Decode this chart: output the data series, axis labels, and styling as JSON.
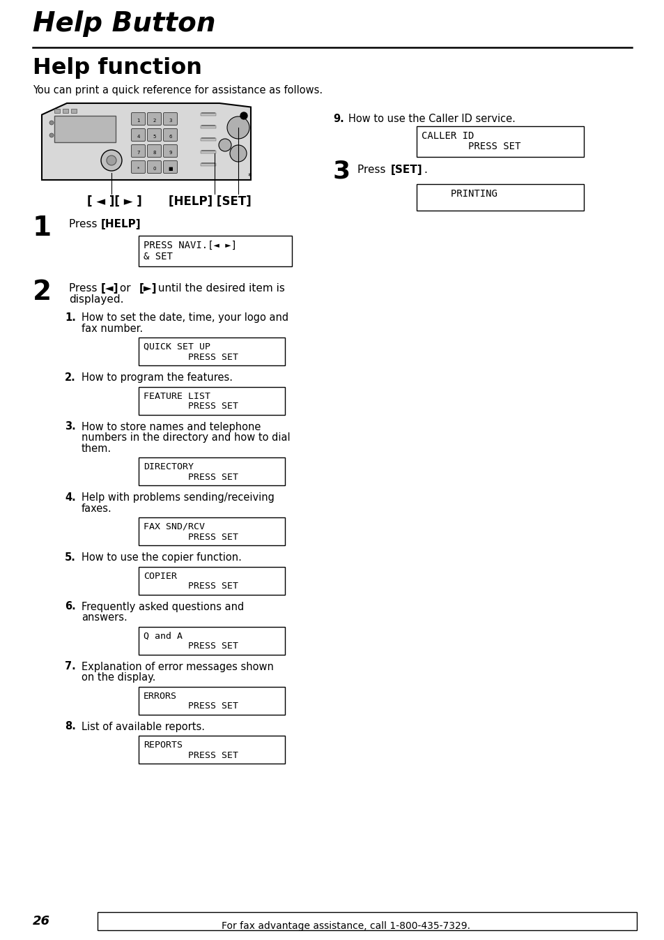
{
  "title": "Help Button",
  "subtitle": "Help function",
  "intro": "You can print a quick reference for assistance as follows.",
  "step1_box_line1": "PRESS NAVI.[◄ ►]",
  "step1_box_line2": "& SET",
  "step9_text": "How to use the Caller ID service.",
  "step9_box_line1": "CALLER ID",
  "step9_box_line2": "        PRESS SET",
  "step3_box_line1": "PRINTING",
  "items": [
    {
      "num": "1.",
      "lines": [
        "How to set the date, time, your logo and",
        "fax number."
      ],
      "box1": "QUICK SET UP",
      "box2": "        PRESS SET"
    },
    {
      "num": "2.",
      "lines": [
        "How to program the features."
      ],
      "box1": "FEATURE LIST",
      "box2": "        PRESS SET"
    },
    {
      "num": "3.",
      "lines": [
        "How to store names and telephone",
        "numbers in the directory and how to dial",
        "them."
      ],
      "box1": "DIRECTORY",
      "box2": "        PRESS SET"
    },
    {
      "num": "4.",
      "lines": [
        "Help with problems sending/receiving",
        "faxes."
      ],
      "box1": "FAX SND/RCV",
      "box2": "        PRESS SET"
    },
    {
      "num": "5.",
      "lines": [
        "How to use the copier function."
      ],
      "box1": "COPIER",
      "box2": "        PRESS SET"
    },
    {
      "num": "6.",
      "lines": [
        "Frequently asked questions and",
        "answers."
      ],
      "box1": "Q and A",
      "box2": "        PRESS SET"
    },
    {
      "num": "7.",
      "lines": [
        "Explanation of error messages shown",
        "on the display."
      ],
      "box1": "ERRORS",
      "box2": "        PRESS SET"
    },
    {
      "num": "8.",
      "lines": [
        "List of available reports."
      ],
      "box1": "REPORTS",
      "box2": "        PRESS SET"
    }
  ],
  "page_num": "26",
  "footer": "For fax advantage assistance, call 1-800-435-7329.",
  "bg_color": "#ffffff",
  "text_color": "#000000"
}
